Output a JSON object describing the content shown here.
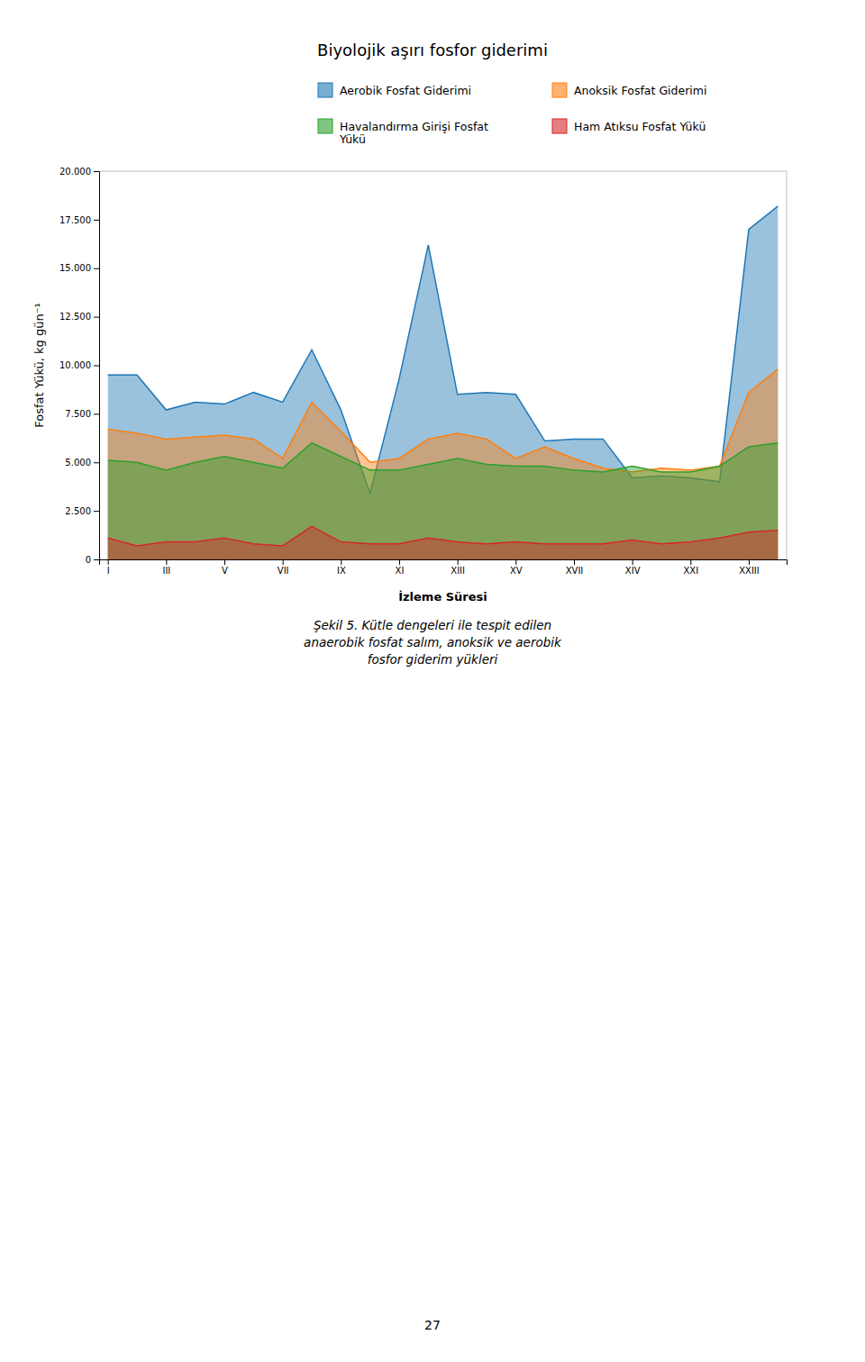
{
  "chart_data": {
    "type": "area",
    "title": "Biyolojik aşırı fosfor giderimi",
    "xlabel": "İzleme Süresi",
    "ylabel": "Fosfat Yükü, kg gün⁻¹",
    "categories": [
      "I",
      null,
      "III",
      null,
      "V",
      null,
      "VII",
      null,
      "IX",
      null,
      "XI",
      null,
      "XIII",
      null,
      "XV",
      null,
      "XVII",
      null,
      "XIV",
      null,
      "XXI",
      null,
      "XXIII",
      null
    ],
    "series": [
      {
        "name": "Aerobik Fosfat Giderimi",
        "values": [
          9500,
          9500,
          7700,
          8100,
          8000,
          8600,
          8100,
          10800,
          7700,
          3400,
          9300,
          16200,
          8500,
          8600,
          8500,
          6100,
          6200,
          6200,
          4200,
          4300,
          4200,
          4000,
          17000,
          18200
        ]
      },
      {
        "name": "Anoksik Fosfat Giderimi",
        "values": [
          6700,
          6500,
          6200,
          6300,
          6400,
          6200,
          5200,
          8100,
          6600,
          5000,
          5200,
          6200,
          6500,
          6200,
          5200,
          5800,
          5200,
          4700,
          4500,
          4700,
          4600,
          4800,
          8600,
          9800
        ]
      },
      {
        "name": "Havalandırma Girişi Fosfat\nYükü",
        "values": [
          5100,
          5000,
          4600,
          5000,
          5300,
          5000,
          4700,
          6000,
          5300,
          4600,
          4600,
          4900,
          5200,
          4900,
          4800,
          4800,
          4600,
          4500,
          4800,
          4500,
          4500,
          4800,
          5800,
          6000
        ]
      },
      {
        "name": "Ham Atıksu Fosfat Yükü",
        "values": [
          1100,
          700,
          900,
          900,
          1100,
          800,
          700,
          1700,
          900,
          800,
          800,
          1100,
          900,
          800,
          900,
          800,
          800,
          800,
          1000,
          800,
          900,
          1100,
          1400,
          1500
        ]
      }
    ],
    "ylim": [
      0,
      20000
    ],
    "yticks": [
      0,
      {
        "value": 2500,
        "label": "2.500"
      },
      {
        "value": 5000,
        "label": "5.000"
      },
      {
        "value": 7500,
        "label": "7.500"
      },
      {
        "value": 10000,
        "label": "10.000"
      },
      {
        "value": 12500,
        "label": "12.500"
      },
      {
        "value": 15000,
        "label": "15.000"
      },
      {
        "value": 17500,
        "label": "17.500"
      },
      {
        "value": 20000,
        "label": "20.000"
      }
    ],
    "stacked": false,
    "grid": false,
    "legend": "upper right",
    "annotations": [
      "Şekil 5. Kütle dengeleri ile tespit edilen",
      "anaerobik fosfat salım, anoksik ve aerobik",
      "fosfor giderim yükleri",
      "27"
    ]
  }
}
